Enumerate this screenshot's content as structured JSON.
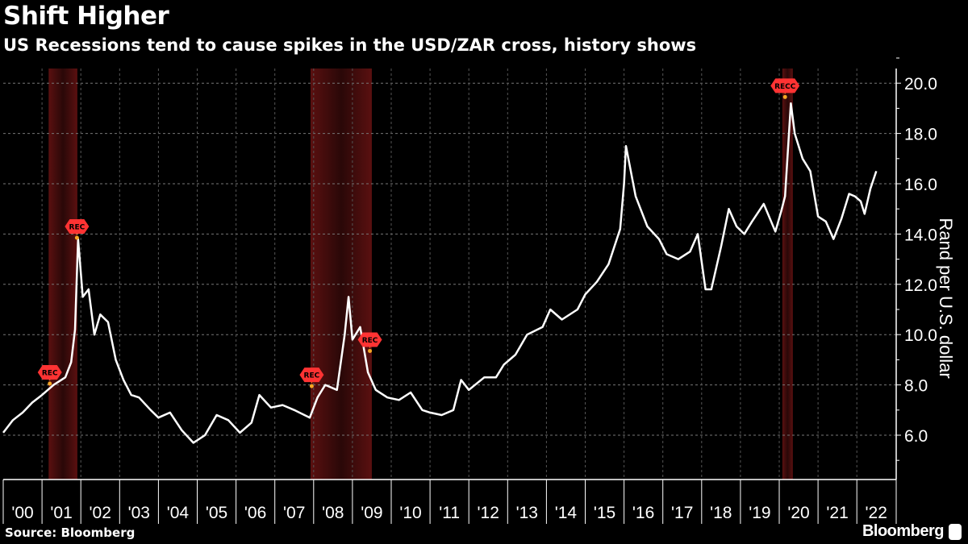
{
  "header": {
    "title": "Shift Higher",
    "subtitle": "US Recessions tend to cause spikes in the USD/ZAR cross, history shows"
  },
  "footer": {
    "source": "Source: Bloomberg",
    "brand": "Bloomberg"
  },
  "chart_data": {
    "type": "line",
    "title": "Shift Higher",
    "subtitle": "US Recessions tend to cause spikes in the USD/ZAR cross, history shows",
    "ylabel": "Rand per U.S. dollar",
    "xlabel": "",
    "xlim": [
      2000,
      2023
    ],
    "ylim": [
      4.2,
      20.6
    ],
    "y_axis_position": "right",
    "yticks": [
      6,
      8,
      10,
      12,
      14,
      16,
      18,
      20
    ],
    "ytick_labels": [
      "6.0",
      "8.0",
      "10.0",
      "12.0",
      "14.0",
      "16.0",
      "18.0",
      "20.0"
    ],
    "xtick_labels": [
      "'00",
      "'01",
      "'02",
      "'03",
      "'04",
      "'05",
      "'06",
      "'07",
      "'08",
      "'09",
      "'10",
      "'11",
      "'12",
      "'13",
      "'14",
      "'15",
      "'16",
      "'17",
      "'18",
      "'19",
      "'20",
      "'21",
      "'22"
    ],
    "grid": true,
    "colors": {
      "line": "#ffffff",
      "recession": "#7a1a1a",
      "marker": "#ff3333",
      "dot": "#f5a623"
    },
    "recessions": [
      {
        "start": 2001.17,
        "end": 2001.91
      },
      {
        "start": 2007.92,
        "end": 2009.5
      },
      {
        "start": 2020.08,
        "end": 2020.35
      }
    ],
    "annotations": [
      {
        "label": "REC",
        "x": 2001.2,
        "y": 8.5
      },
      {
        "label": "REC",
        "x": 2001.9,
        "y": 14.3
      },
      {
        "label": "REC",
        "x": 2007.95,
        "y": 8.4
      },
      {
        "label": "REC",
        "x": 2009.45,
        "y": 9.8
      },
      {
        "label": "RECC",
        "x": 2020.15,
        "y": 19.9
      }
    ],
    "series": [
      {
        "x": [
          2000.0,
          2000.25,
          2000.5,
          2000.75,
          2001.0,
          2001.3,
          2001.6,
          2001.75,
          2001.85,
          2001.93,
          2002.05,
          2002.2,
          2002.35,
          2002.5,
          2002.7,
          2002.9,
          2003.1,
          2003.3,
          2003.5,
          2003.8,
          2004.0,
          2004.3,
          2004.6,
          2004.9,
          2005.2,
          2005.5,
          2005.8,
          2006.1,
          2006.4,
          2006.6,
          2006.9,
          2007.2,
          2007.5,
          2007.9,
          2008.1,
          2008.3,
          2008.6,
          2008.8,
          2008.9,
          2009.0,
          2009.2,
          2009.4,
          2009.6,
          2009.9,
          2010.2,
          2010.5,
          2010.8,
          2011.0,
          2011.3,
          2011.6,
          2011.8,
          2012.0,
          2012.4,
          2012.7,
          2012.9,
          2013.2,
          2013.5,
          2013.9,
          2014.1,
          2014.4,
          2014.8,
          2015.0,
          2015.3,
          2015.6,
          2015.9,
          2016.0,
          2016.05,
          2016.3,
          2016.6,
          2016.9,
          2017.1,
          2017.4,
          2017.7,
          2017.9,
          2018.1,
          2018.25,
          2018.5,
          2018.7,
          2018.9,
          2019.1,
          2019.3,
          2019.6,
          2019.9,
          2020.05,
          2020.15,
          2020.3,
          2020.4,
          2020.6,
          2020.8,
          2021.0,
          2021.2,
          2021.4,
          2021.6,
          2021.8,
          2021.95,
          2022.1,
          2022.2,
          2022.35,
          2022.5
        ],
        "y": [
          6.1,
          6.6,
          6.9,
          7.3,
          7.6,
          8.0,
          8.3,
          8.9,
          10.2,
          13.8,
          11.5,
          11.8,
          10.0,
          10.8,
          10.5,
          9.0,
          8.2,
          7.6,
          7.5,
          7.0,
          6.7,
          6.9,
          6.2,
          5.7,
          6.0,
          6.8,
          6.6,
          6.1,
          6.5,
          7.6,
          7.1,
          7.2,
          7.0,
          6.7,
          7.5,
          8.0,
          7.8,
          10.0,
          11.5,
          9.8,
          10.3,
          8.5,
          7.8,
          7.5,
          7.4,
          7.7,
          7.0,
          6.9,
          6.8,
          7.0,
          8.2,
          7.8,
          8.3,
          8.3,
          8.8,
          9.2,
          10.0,
          10.3,
          11.0,
          10.6,
          11.0,
          11.6,
          12.1,
          12.8,
          14.2,
          16.0,
          17.5,
          15.5,
          14.3,
          13.8,
          13.2,
          13.0,
          13.3,
          14.0,
          11.8,
          11.8,
          13.5,
          15.0,
          14.3,
          14.0,
          14.5,
          15.2,
          14.1,
          14.9,
          15.5,
          19.2,
          18.0,
          17.0,
          16.5,
          14.7,
          14.5,
          13.8,
          14.6,
          15.6,
          15.5,
          15.3,
          14.8,
          15.8,
          16.5
        ]
      }
    ]
  }
}
